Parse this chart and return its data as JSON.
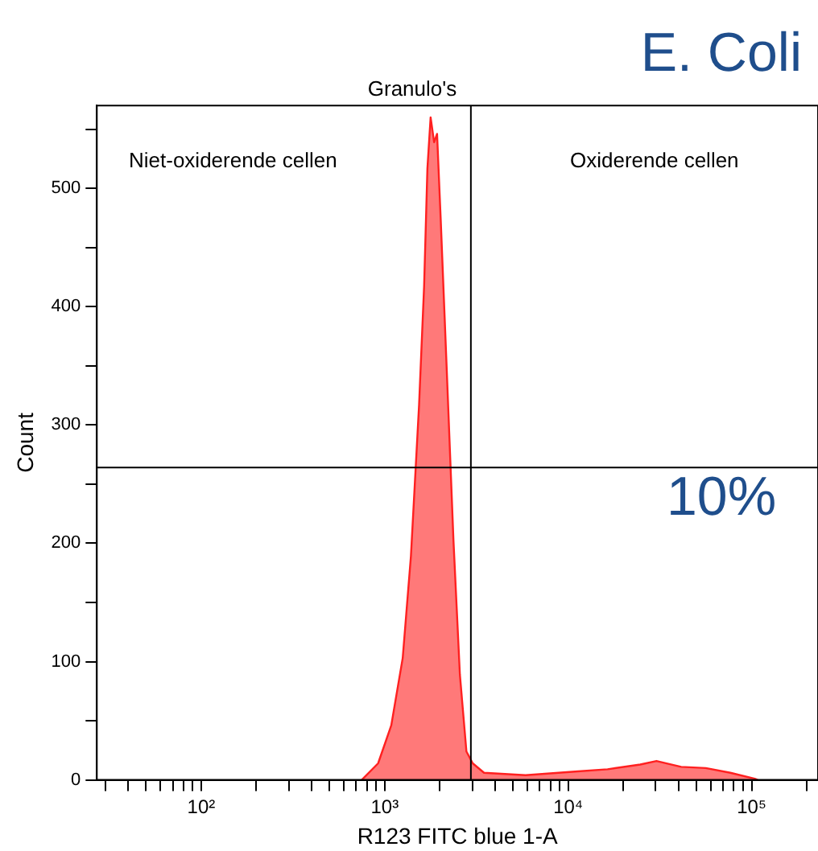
{
  "chart_data": {
    "type": "area",
    "title": "Granulo's",
    "xlabel": "R123 FITC blue 1-A",
    "ylabel": "Count",
    "log": "x",
    "annotations": [
      "E. Coli",
      "10%",
      "Niet-oxiderende cellen",
      "Oxiderende cellen"
    ],
    "series": [
      {
        "color": "#ff2020",
        "x": [
          750,
          921,
          1086,
          1254,
          1390,
          1540,
          1640,
          1710,
          1780,
          1860,
          1930,
          2020,
          2180,
          2370,
          2570,
          2790,
          3020,
          3480,
          5860,
          10900,
          16400,
          24700,
          30300,
          41300,
          56200,
          76600,
          104000,
          108000
        ],
        "values": [
          0,
          14,
          46,
          103,
          189,
          317,
          417,
          517,
          560,
          539,
          546,
          474,
          346,
          203,
          89,
          24,
          14,
          6,
          4,
          7,
          9,
          13,
          16,
          11,
          10,
          6,
          1,
          0
        ]
      }
    ],
    "xlim": [
      27,
      230000
    ],
    "xticks": [
      {
        "value": 30,
        "label": null
      },
      {
        "value": 40,
        "label": null
      },
      {
        "value": 50,
        "label": null
      },
      {
        "value": 60,
        "label": null
      },
      {
        "value": 70,
        "label": null
      },
      {
        "value": 80,
        "label": null
      },
      {
        "value": 90,
        "label": null
      },
      {
        "value": 100,
        "label": "10²"
      },
      {
        "value": 200,
        "label": null
      },
      {
        "value": 300,
        "label": null
      },
      {
        "value": 400,
        "label": null
      },
      {
        "value": 500,
        "label": null
      },
      {
        "value": 600,
        "label": null
      },
      {
        "value": 700,
        "label": null
      },
      {
        "value": 800,
        "label": null
      },
      {
        "value": 900,
        "label": null
      },
      {
        "value": 1000,
        "label": "10³"
      },
      {
        "value": 2000,
        "label": null
      },
      {
        "value": 3000,
        "label": null
      },
      {
        "value": 4000,
        "label": null
      },
      {
        "value": 5000,
        "label": null
      },
      {
        "value": 6000,
        "label": null
      },
      {
        "value": 7000,
        "label": null
      },
      {
        "value": 8000,
        "label": null
      },
      {
        "value": 9000,
        "label": null
      },
      {
        "value": 10000,
        "label": "10⁴"
      },
      {
        "value": 20000,
        "label": null
      },
      {
        "value": 30000,
        "label": null
      },
      {
        "value": 40000,
        "label": null
      },
      {
        "value": 50000,
        "label": null
      },
      {
        "value": 60000,
        "label": null
      },
      {
        "value": 70000,
        "label": null
      },
      {
        "value": 80000,
        "label": null
      },
      {
        "value": 90000,
        "label": null
      },
      {
        "value": 100000,
        "label": "10⁵"
      },
      {
        "value": 200000,
        "label": null
      }
    ],
    "ylim": [
      0,
      570
    ],
    "yticks": [
      0,
      {
        "value": 50,
        "label": null
      },
      100,
      {
        "value": 150,
        "label": null
      },
      200,
      {
        "value": 250,
        "label": null
      },
      300,
      {
        "value": 350,
        "label": null
      },
      400,
      {
        "value": 450,
        "label": null
      },
      500,
      {
        "value": 550,
        "label": null
      }
    ],
    "ref_lines": [
      {
        "axis": "y",
        "value": 264,
        "color": "#000000"
      },
      {
        "axis": "x",
        "value": 2950,
        "color": "#000000"
      }
    ],
    "grid": false,
    "legend": false
  }
}
